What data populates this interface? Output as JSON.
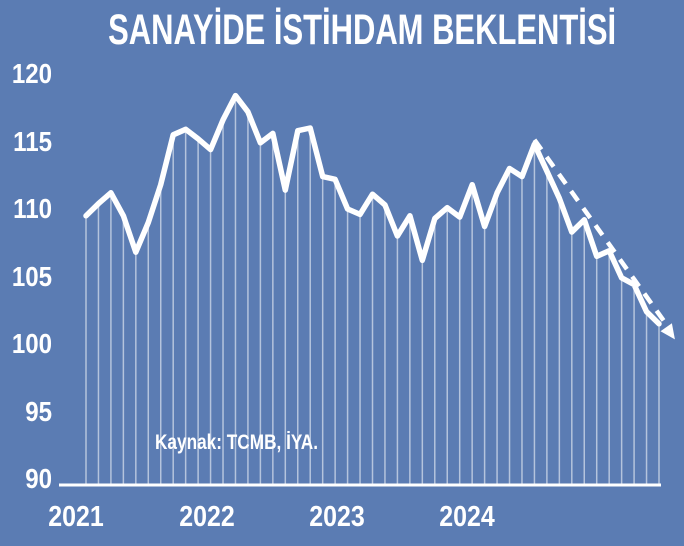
{
  "title": "SANAYİDE İSTİHDAM BEKLENTİSİ",
  "source_note": "Kaynak: TCMB, İYA.",
  "colors": {
    "background": "#5b7cb3",
    "text": "#ffffff",
    "series_line": "#ffffff",
    "drop_line": "rgba(255,255,255,0.55)",
    "axis_line": "#ffffff",
    "trend_line": "#ffffff"
  },
  "chart_data": {
    "type": "line",
    "title": "SANAYİDE İSTİHDAM BEKLENTİSİ",
    "xlabel": "",
    "ylabel": "",
    "ylim": [
      90,
      120
    ],
    "y_ticks": [
      120,
      115,
      110,
      105,
      100,
      95,
      90
    ],
    "x_tick_labels": [
      "2021",
      "2022",
      "2023",
      "2024"
    ],
    "legend": "none",
    "grid": "vertical drop lines from each data point to baseline",
    "x": [
      "2021-01",
      "2021-02",
      "2021-03",
      "2021-04",
      "2021-05",
      "2021-06",
      "2021-07",
      "2021-08",
      "2021-09",
      "2021-10",
      "2021-11",
      "2021-12",
      "2022-01",
      "2022-02",
      "2022-03",
      "2022-04",
      "2022-05",
      "2022-06",
      "2022-07",
      "2022-08",
      "2022-09",
      "2022-10",
      "2022-11",
      "2022-12",
      "2023-01",
      "2023-02",
      "2023-03",
      "2023-04",
      "2023-05",
      "2023-06",
      "2023-07",
      "2023-08",
      "2023-09",
      "2023-10",
      "2023-11",
      "2023-12",
      "2024-01",
      "2024-02",
      "2024-03",
      "2024-04",
      "2024-05",
      "2024-06",
      "2024-07",
      "2024-08",
      "2024-09",
      "2024-10",
      "2024-11"
    ],
    "values": [
      109.5,
      110.4,
      111.2,
      109.5,
      106.8,
      109.0,
      111.8,
      115.5,
      115.9,
      115.2,
      114.4,
      116.6,
      118.4,
      117.2,
      114.9,
      115.6,
      111.4,
      115.8,
      116.0,
      112.4,
      112.2,
      110.0,
      109.6,
      111.1,
      110.3,
      108.0,
      109.5,
      106.2,
      109.3,
      110.1,
      109.4,
      111.8,
      108.7,
      111.2,
      113.0,
      112.4,
      114.8,
      112.8,
      110.8,
      108.3,
      109.2,
      106.5,
      106.9,
      104.9,
      104.4,
      102.4,
      101.5
    ],
    "trend_projection": {
      "style": "dashed",
      "arrow": true,
      "from_month": "2024-01",
      "from_value": 114.9,
      "to_month": "2024-12",
      "to_value": 100.7
    }
  }
}
